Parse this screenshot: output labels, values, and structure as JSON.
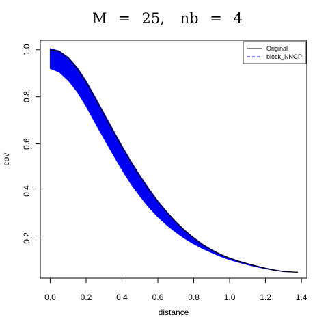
{
  "chart_data": {
    "type": "line",
    "title_parts": [
      "M",
      "=",
      "25,",
      "nb",
      "=",
      "4"
    ],
    "xlabel": "distance",
    "ylabel": "cov",
    "xlim": [
      -0.055,
      1.43
    ],
    "ylim": [
      0.03,
      1.04
    ],
    "xticks": [
      0.0,
      0.2,
      0.4,
      0.6,
      0.8,
      1.0,
      1.2,
      1.4
    ],
    "xtick_labels": [
      "0.0",
      "0.2",
      "0.4",
      "0.6",
      "0.8",
      "1.0",
      "1.2",
      "1.4"
    ],
    "yticks": [
      0.2,
      0.4,
      0.6,
      0.8,
      1.0
    ],
    "ytick_labels": [
      "0.2",
      "0.4",
      "0.6",
      "0.8",
      "1.0"
    ],
    "legend": {
      "position": "top-right",
      "entries": [
        {
          "label": "Original",
          "color": "#000000",
          "style": "solid"
        },
        {
          "label": "block_NNGP",
          "color": "#0000ff",
          "style": "dashed"
        }
      ]
    },
    "series": [
      {
        "name": "Original",
        "color": "#000000",
        "x": [
          0.0,
          0.05,
          0.1,
          0.15,
          0.2,
          0.25,
          0.3,
          0.35,
          0.4,
          0.45,
          0.5,
          0.55,
          0.6,
          0.65,
          0.7,
          0.75,
          0.8,
          0.85,
          0.9,
          0.95,
          1.0,
          1.05,
          1.1,
          1.15,
          1.2,
          1.25,
          1.3,
          1.38
        ],
        "y": [
          1.0,
          0.993,
          0.965,
          0.92,
          0.862,
          0.795,
          0.725,
          0.655,
          0.588,
          0.523,
          0.462,
          0.405,
          0.355,
          0.31,
          0.268,
          0.232,
          0.2,
          0.172,
          0.149,
          0.13,
          0.115,
          0.102,
          0.091,
          0.081,
          0.072,
          0.064,
          0.058,
          0.055
        ]
      },
      {
        "name": "block_NNGP",
        "color": "#0000ff",
        "x": [
          0.0,
          0.05,
          0.1,
          0.15,
          0.2,
          0.25,
          0.3,
          0.35,
          0.4,
          0.45,
          0.5,
          0.55,
          0.6,
          0.65,
          0.7,
          0.75,
          0.8,
          0.85,
          0.9,
          0.95,
          1.0,
          1.05,
          1.1,
          1.15,
          1.2,
          1.25,
          1.3,
          1.38
        ],
        "y_lower": [
          0.92,
          0.905,
          0.87,
          0.822,
          0.76,
          0.69,
          0.622,
          0.555,
          0.49,
          0.43,
          0.378,
          0.33,
          0.29,
          0.255,
          0.225,
          0.198,
          0.175,
          0.155,
          0.138,
          0.122,
          0.108,
          0.097,
          0.087,
          0.078,
          0.07,
          0.063,
          0.058,
          0.055
        ],
        "y_upper": [
          1.005,
          0.995,
          0.968,
          0.925,
          0.868,
          0.8,
          0.73,
          0.66,
          0.592,
          0.527,
          0.466,
          0.41,
          0.358,
          0.312,
          0.27,
          0.234,
          0.202,
          0.174,
          0.151,
          0.132,
          0.116,
          0.103,
          0.092,
          0.082,
          0.073,
          0.065,
          0.059,
          0.055
        ]
      }
    ]
  }
}
